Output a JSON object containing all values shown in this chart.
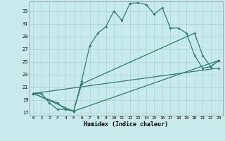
{
  "xlabel": "Humidex (Indice chaleur)",
  "bg_color": "#c8eaeb",
  "line_color": "#2d7d6e",
  "grid_color": "#a8d5d5",
  "xlim": [
    -0.5,
    23.5
  ],
  "ylim": [
    16.5,
    34.5
  ],
  "xticks": [
    0,
    1,
    2,
    3,
    4,
    5,
    6,
    7,
    8,
    9,
    10,
    11,
    12,
    13,
    14,
    15,
    16,
    17,
    18,
    19,
    20,
    21,
    22,
    23
  ],
  "yticks": [
    17,
    19,
    21,
    23,
    25,
    27,
    29,
    31,
    33
  ],
  "series1": [
    [
      0,
      20
    ],
    [
      1,
      20
    ],
    [
      2,
      18.5
    ],
    [
      3,
      17.5
    ],
    [
      4,
      17.5
    ],
    [
      5,
      17.2
    ],
    [
      6,
      22
    ],
    [
      7,
      27.5
    ],
    [
      8,
      29.5
    ],
    [
      9,
      30.5
    ],
    [
      10,
      33
    ],
    [
      11,
      31.5
    ],
    [
      12,
      34.2
    ],
    [
      13,
      34.3
    ],
    [
      14,
      34
    ],
    [
      15,
      32.5
    ],
    [
      16,
      33.5
    ],
    [
      17,
      30.3
    ],
    [
      18,
      30.3
    ],
    [
      19,
      29.5
    ],
    [
      20,
      26
    ],
    [
      21,
      24
    ],
    [
      22,
      24.2
    ],
    [
      23,
      25.2
    ]
  ],
  "series2": [
    [
      0,
      20
    ],
    [
      3,
      18.5
    ],
    [
      4,
      17.5
    ],
    [
      5,
      17.2
    ],
    [
      6,
      21.5
    ],
    [
      20,
      29.5
    ],
    [
      21,
      26
    ],
    [
      22,
      24.2
    ],
    [
      23,
      25.2
    ]
  ],
  "series3": [
    [
      0,
      20
    ],
    [
      5,
      17.2
    ],
    [
      23,
      25.2
    ]
  ],
  "series4": [
    [
      0,
      20
    ],
    [
      23,
      24.0
    ]
  ]
}
